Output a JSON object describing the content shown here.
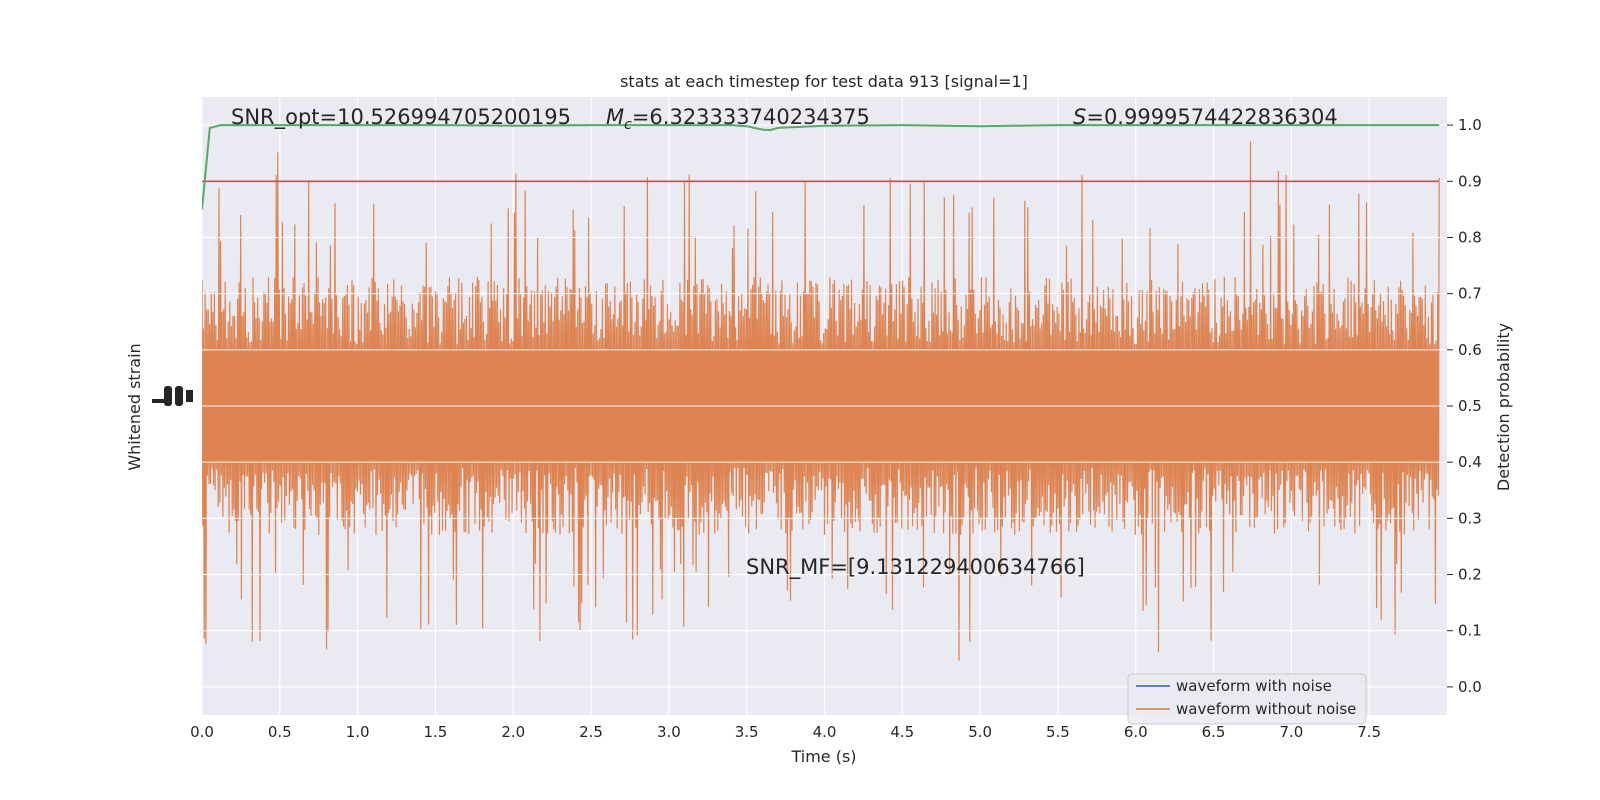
{
  "chart_data": {
    "type": "line",
    "title": "stats at each timestep for test data 913 [signal=1]",
    "xlabel": "Time (s)",
    "ylabel_left": "Whitened strain",
    "ylabel_right": "Detection probability",
    "xlim": [
      0.0,
      8.0
    ],
    "ylim_right": [
      -0.05,
      1.05
    ],
    "x_ticks": [
      "0.0",
      "0.5",
      "1.0",
      "1.5",
      "2.0",
      "2.5",
      "3.0",
      "3.5",
      "4.0",
      "4.5",
      "5.0",
      "5.5",
      "6.0",
      "6.5",
      "7.0",
      "7.5"
    ],
    "y_ticks_right": [
      "0.0",
      "0.1",
      "0.2",
      "0.3",
      "0.4",
      "0.5",
      "0.6",
      "0.7",
      "0.8",
      "0.9",
      "1.0"
    ],
    "grid": true,
    "legend_position": "lower-right",
    "colors": {
      "background": "#eaeaf2",
      "grid": "#ffffff",
      "waveform_with_noise": "#4c72b0",
      "waveform_without_noise": "#dd8452",
      "detection_probability": "#55a868",
      "threshold": "#c44e52"
    },
    "annotations": {
      "snr_opt": "SNR_opt=10.526994705200195",
      "mchirp_symbol": "M",
      "mchirp_sub": "c",
      "mchirp_value": "=6.323333740234375",
      "s_symbol": "S",
      "s_value": "=0.9999574422836304",
      "snr_mf": "SNR_MF=[9.131229400634766]"
    },
    "series": [
      {
        "name": "waveform with noise",
        "color": "#4c72b0",
        "visible_in_plot": false
      },
      {
        "name": "waveform without noise",
        "color": "#dd8452",
        "description_values": {
          "core_band": [
            0.4,
            0.6
          ],
          "typical_envelope": [
            0.27,
            0.7
          ],
          "extremes": [
            0.02,
            0.98
          ]
        }
      },
      {
        "name": "detection probability",
        "color": "#55a868",
        "x": [
          0.0,
          0.05,
          0.12,
          0.3,
          0.6,
          1.0,
          1.5,
          2.0,
          2.5,
          3.0,
          3.4,
          3.5,
          3.6,
          3.65,
          3.7,
          4.0,
          4.5,
          5.0,
          5.5,
          6.0,
          6.5,
          7.0,
          7.5,
          7.95
        ],
        "y": [
          0.85,
          0.995,
          1.0,
          1.0,
          1.0,
          1.0,
          1.0,
          0.999,
          1.0,
          1.0,
          1.0,
          0.998,
          0.992,
          0.991,
          0.995,
          0.999,
          1.0,
          0.998,
          1.0,
          1.0,
          1.0,
          1.0,
          1.0,
          1.0
        ]
      },
      {
        "name": "threshold",
        "color": "#c44e52",
        "x": [
          0.0,
          7.95
        ],
        "y": [
          0.9,
          0.9
        ]
      }
    ],
    "legend": [
      "waveform with noise",
      "waveform without noise"
    ]
  }
}
